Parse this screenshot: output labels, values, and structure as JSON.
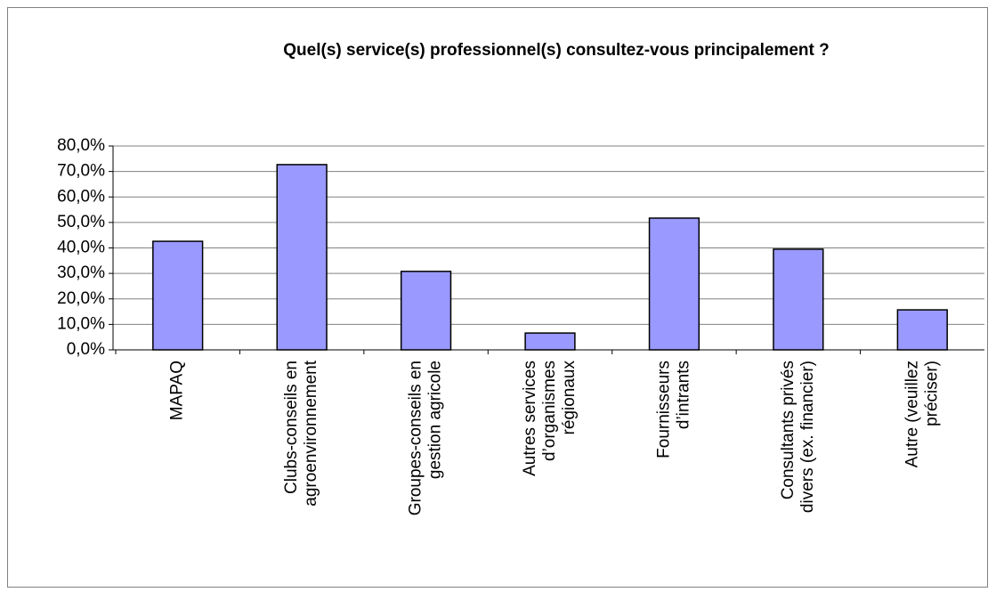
{
  "chart_data": {
    "type": "bar",
    "title": "Quel(s) service(s) professionnel(s) consultez-vous principalement ?",
    "categories": [
      "MAPAQ",
      "Clubs-conseils en\nagroenvironnement",
      "Groupes-conseils en\ngestion agricole",
      "Autres services\nd’organismes\nrégionaux",
      "Fournisseurs\nd’intrants",
      "Consultants privés\ndivers (ex. financier)",
      "Autre (veuillez\npréciser)"
    ],
    "values": [
      42.6,
      72.7,
      30.8,
      6.6,
      51.7,
      39.5,
      15.7
    ],
    "color": "#9999ff",
    "ylim": [
      0,
      80
    ],
    "yticks": [
      {
        "value": 0,
        "label": "0,0%"
      },
      {
        "value": 10,
        "label": "10,0%"
      },
      {
        "value": 20,
        "label": "20,0%"
      },
      {
        "value": 30,
        "label": "30,0%"
      },
      {
        "value": 40,
        "label": "40,0%"
      },
      {
        "value": 50,
        "label": "50,0%"
      },
      {
        "value": 60,
        "label": "60,0%"
      },
      {
        "value": 70,
        "label": "70,0%"
      },
      {
        "value": 80,
        "label": "80,0%"
      }
    ],
    "grid": true
  }
}
